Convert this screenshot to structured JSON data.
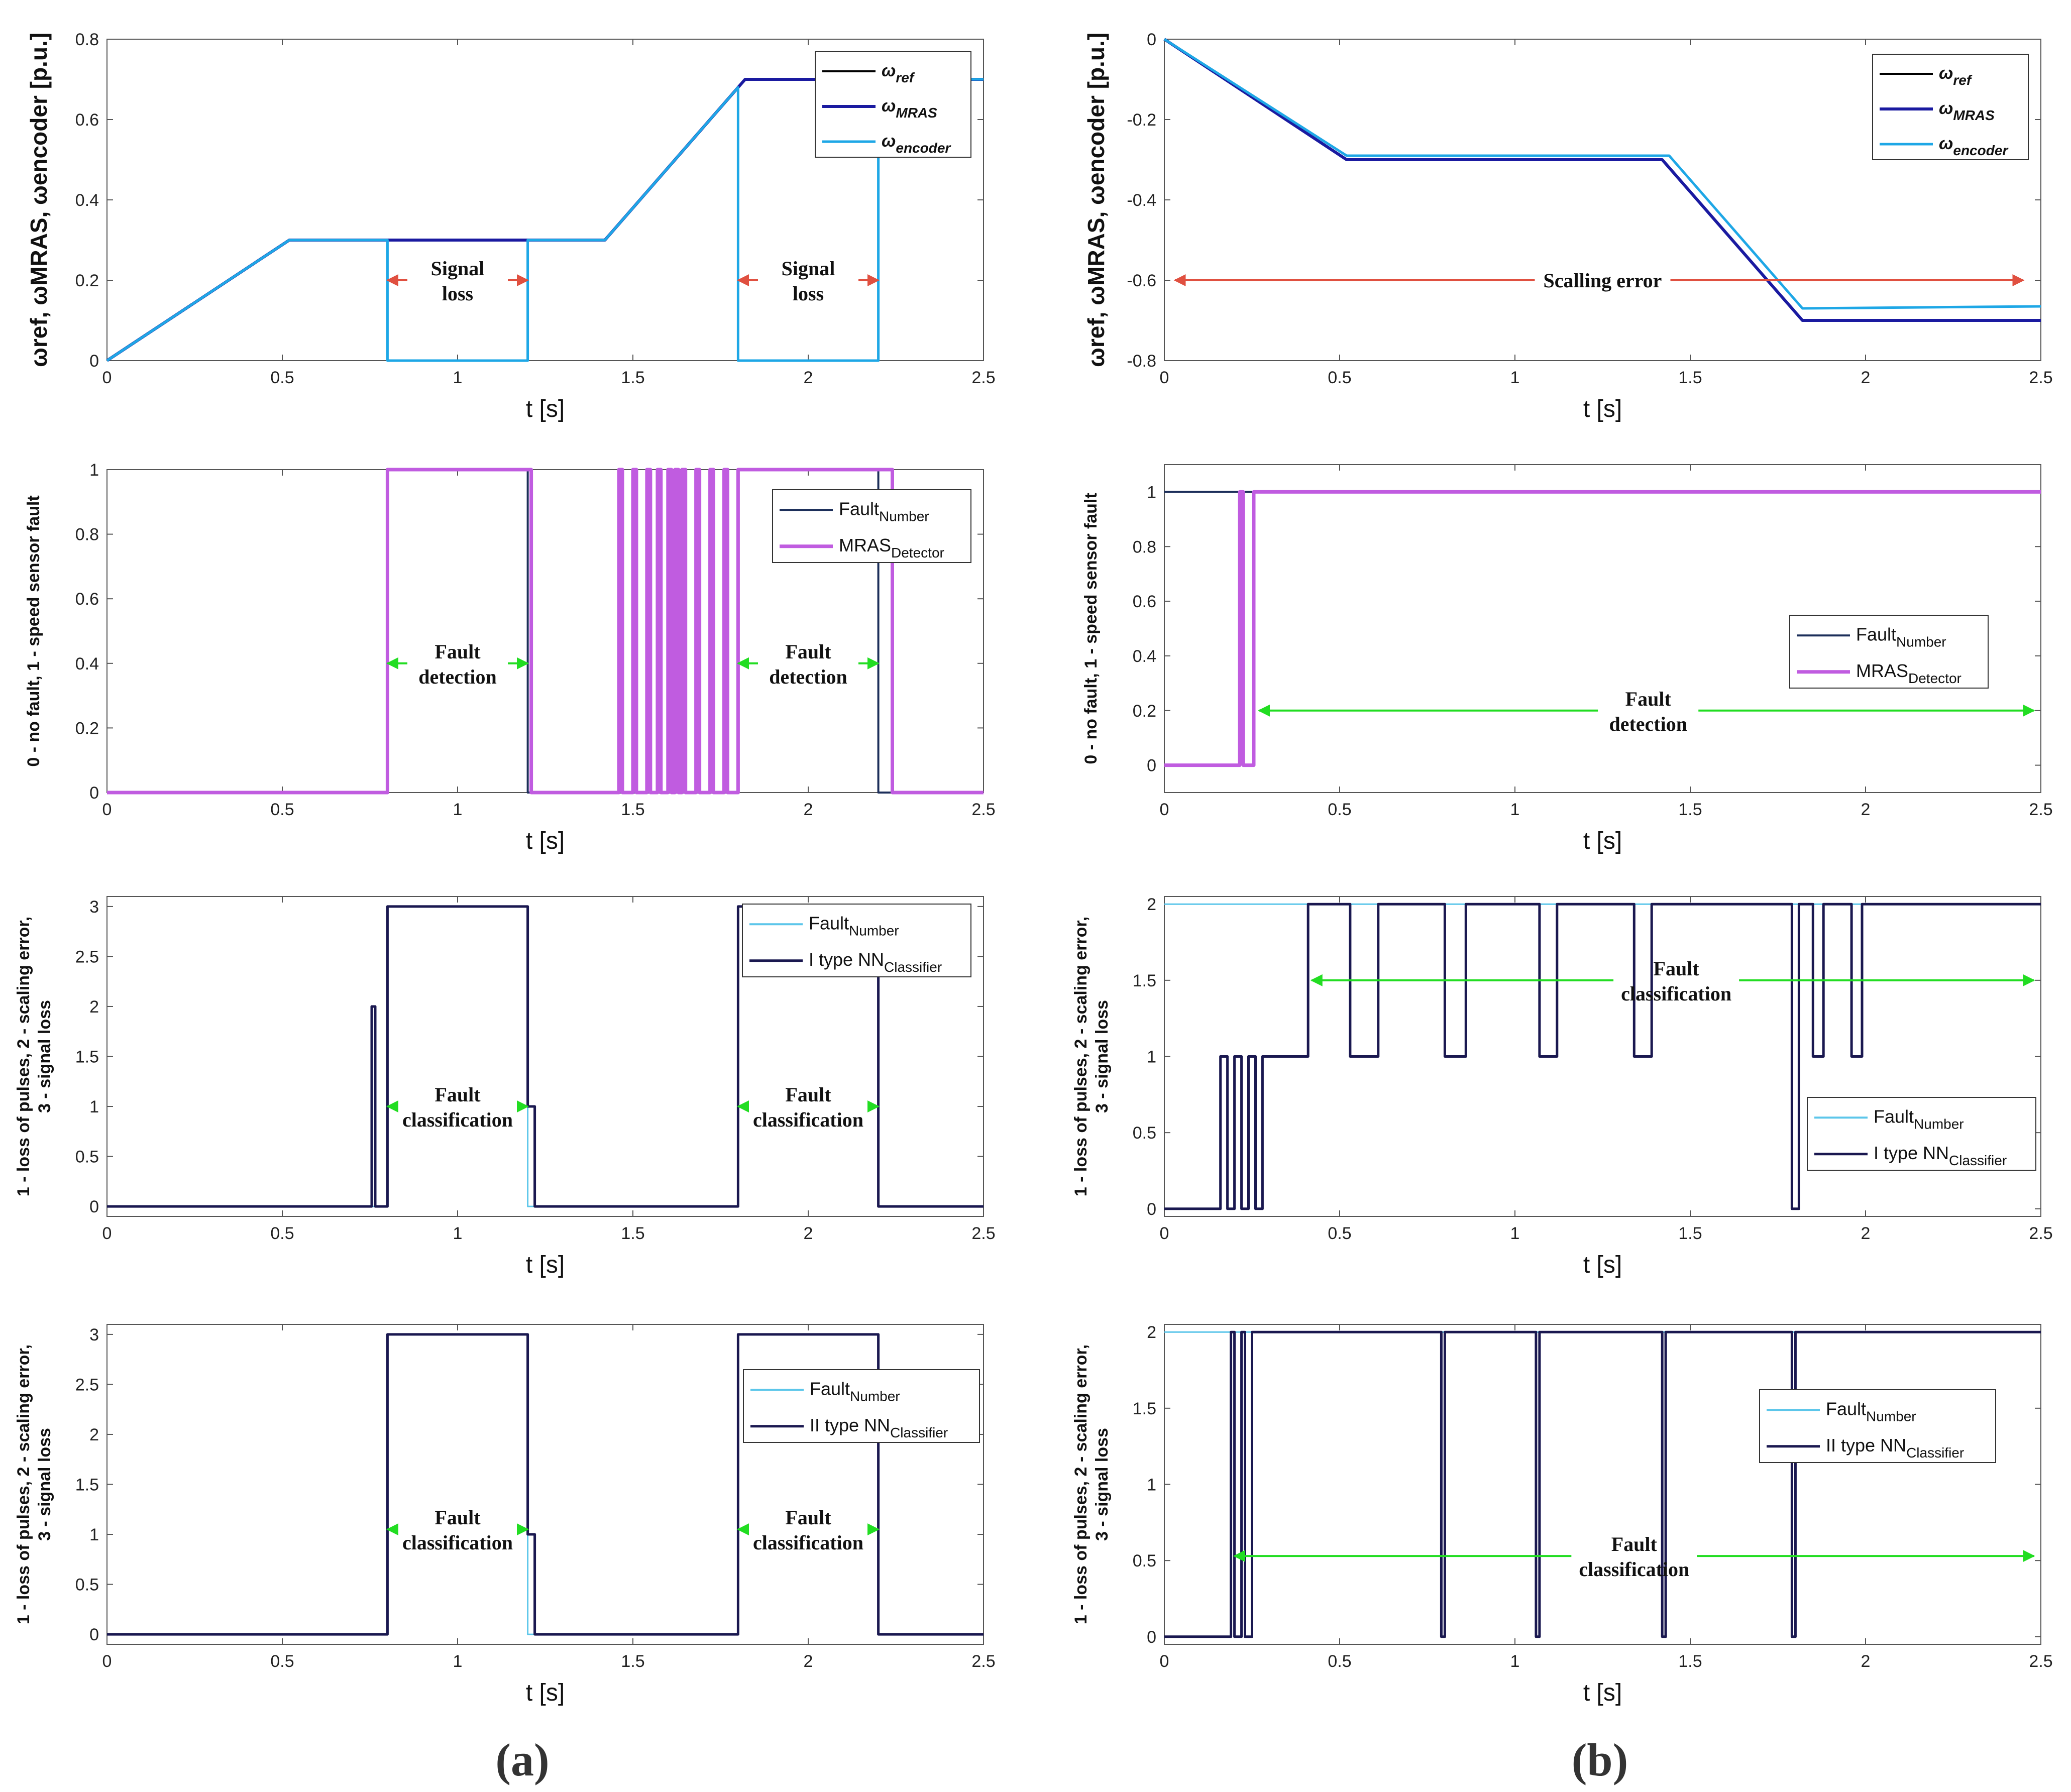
{
  "figure": {
    "panel_labels": [
      "(a)",
      "(b)"
    ]
  },
  "colors": {
    "ref": "#000000",
    "mras": "#1a1aa0",
    "encoder": "#1ea7e6",
    "detector": "#c05ce0",
    "fault_number_a": "#1c2f5a",
    "fault_number_c": "#5cc6ea",
    "classifier": "#1a1850",
    "red_arrow": "#e05040",
    "green_arrow": "#22dd22"
  },
  "chart_data": [
    {
      "id": "a1",
      "type": "line",
      "xlabel": "t [s]",
      "xlim": [
        0,
        2.5
      ],
      "xticks": [
        0,
        0.5,
        1,
        1.5,
        2,
        2.5
      ],
      "ylabel": "ωref, ωMRAS, ωencoder [p.u.]",
      "ylim": [
        0,
        0.8
      ],
      "yticks": [
        0,
        0.2,
        0.4,
        0.6,
        0.8
      ],
      "legend": [
        "ωref",
        "ωMRAS",
        "ωencoder"
      ],
      "legend_position": "top-right",
      "series": [
        {
          "name": "ωref",
          "color": "ref",
          "width": 4,
          "x": [
            0,
            0.52,
            1.42,
            1.82,
            2.5
          ],
          "y": [
            0,
            0.3,
            0.3,
            0.7,
            0.7
          ]
        },
        {
          "name": "ωMRAS",
          "color": "mras",
          "width": 6,
          "x": [
            0,
            0.52,
            1.42,
            1.82,
            2.5
          ],
          "y": [
            0,
            0.3,
            0.3,
            0.7,
            0.7
          ]
        },
        {
          "name": "ωencoder",
          "color": "encoder",
          "width": 5,
          "x": [
            0,
            0.52,
            0.8,
            0.8,
            1.2,
            1.2,
            1.42,
            1.8,
            1.8,
            2.2,
            2.2,
            2.5
          ],
          "y": [
            0,
            0.3,
            0.3,
            0,
            0,
            0.3,
            0.3,
            0.68,
            0,
            0,
            0.7,
            0.7
          ]
        }
      ],
      "annotations": [
        {
          "lines": [
            "Signal",
            "loss"
          ],
          "x1": 0.8,
          "x2": 1.2,
          "y": 0.2,
          "color": "red_arrow",
          "text_x": 1.0,
          "text_y": 0.2
        },
        {
          "lines": [
            "Signal",
            "loss"
          ],
          "x1": 1.8,
          "x2": 2.2,
          "y": 0.2,
          "color": "red_arrow",
          "text_x": 2.0,
          "text_y": 0.2
        }
      ]
    },
    {
      "id": "b1",
      "type": "line",
      "xlabel": "t [s]",
      "xlim": [
        0,
        2.5
      ],
      "xticks": [
        0,
        0.5,
        1,
        1.5,
        2,
        2.5
      ],
      "ylabel": "ωref, ωMRAS, ωencoder [p.u.]",
      "ylim": [
        -0.8,
        0
      ],
      "yticks": [
        -0.8,
        -0.6,
        -0.4,
        -0.2,
        0
      ],
      "legend": [
        "ωref",
        "ωMRAS",
        "ωencoder"
      ],
      "legend_position": "top-right",
      "series": [
        {
          "name": "ωref",
          "color": "ref",
          "width": 4,
          "x": [
            0,
            0.52,
            1.42,
            1.82,
            2.5
          ],
          "y": [
            0,
            -0.3,
            -0.3,
            -0.7,
            -0.7
          ]
        },
        {
          "name": "ωMRAS",
          "color": "mras",
          "width": 6,
          "x": [
            0,
            0.52,
            1.42,
            1.82,
            2.5
          ],
          "y": [
            0,
            -0.3,
            -0.3,
            -0.7,
            -0.7
          ]
        },
        {
          "name": "ωencoder",
          "color": "encoder",
          "width": 5,
          "x": [
            0,
            0.52,
            1.44,
            1.82,
            2.5
          ],
          "y": [
            0,
            -0.29,
            -0.29,
            -0.67,
            -0.665
          ]
        }
      ],
      "annotations": [
        {
          "lines": [
            "Scalling error"
          ],
          "x1": 0.03,
          "x2": 2.45,
          "y": -0.6,
          "color": "red_arrow",
          "text_x": 1.25,
          "text_y": -0.6
        }
      ]
    },
    {
      "id": "a2",
      "type": "line",
      "xlabel": "t [s]",
      "xlim": [
        0,
        2.5
      ],
      "xticks": [
        0,
        0.5,
        1,
        1.5,
        2,
        2.5
      ],
      "ylabel": "0 - no fault, 1 - speed sensor fault",
      "ylim": [
        0,
        1
      ],
      "yticks": [
        0,
        0.2,
        0.4,
        0.6,
        0.8,
        1
      ],
      "legend": [
        "FaultNumber",
        "MRASDetector"
      ],
      "legend_position": "top-right",
      "series": [
        {
          "name": "FaultNumber",
          "color": "fault_number_a",
          "width": 4,
          "x": [
            0,
            0.8,
            0.8,
            1.2,
            1.2,
            1.8,
            1.8,
            2.2,
            2.2,
            2.5
          ],
          "y": [
            0,
            0,
            1,
            1,
            0,
            0,
            1,
            1,
            0,
            0
          ]
        },
        {
          "name": "MRASDetector",
          "color": "detector",
          "width": 7,
          "x": [
            0,
            0.8,
            0.8,
            1.21,
            1.21,
            1.46,
            1.46,
            1.47,
            1.47,
            1.5,
            1.5,
            1.51,
            1.51,
            1.54,
            1.54,
            1.55,
            1.55,
            1.57,
            1.57,
            1.58,
            1.58,
            1.6,
            1.6,
            1.61,
            1.61,
            1.62,
            1.62,
            1.63,
            1.63,
            1.64,
            1.64,
            1.65,
            1.65,
            1.68,
            1.68,
            1.69,
            1.69,
            1.72,
            1.72,
            1.73,
            1.73,
            1.76,
            1.76,
            1.77,
            1.77,
            1.8,
            1.8,
            2.24,
            2.24,
            2.5
          ],
          "y": [
            0,
            0,
            1,
            1,
            0,
            0,
            1,
            1,
            0,
            0,
            1,
            1,
            0,
            0,
            1,
            1,
            0,
            0,
            1,
            1,
            0,
            0,
            1,
            1,
            0,
            0,
            1,
            1,
            0,
            0,
            1,
            1,
            0,
            0,
            1,
            1,
            0,
            0,
            1,
            1,
            0,
            0,
            1,
            1,
            0,
            0,
            1,
            1,
            0,
            0
          ]
        }
      ],
      "annotations": [
        {
          "lines": [
            "Fault",
            "detection"
          ],
          "x1": 0.8,
          "x2": 1.2,
          "y": 0.4,
          "color": "green_arrow",
          "text_x": 1.0,
          "text_y": 0.4
        },
        {
          "lines": [
            "Fault",
            "detection"
          ],
          "x1": 1.8,
          "x2": 2.2,
          "y": 0.4,
          "color": "green_arrow",
          "text_x": 2.0,
          "text_y": 0.4
        }
      ]
    },
    {
      "id": "b2",
      "type": "line",
      "xlabel": "t [s]",
      "xlim": [
        0,
        2.5
      ],
      "xticks": [
        0,
        0.5,
        1,
        1.5,
        2,
        2.5
      ],
      "ylabel": "0 - no fault, 1 - speed sensor fault",
      "ylim": [
        -0.1,
        1.1
      ],
      "yticks": [
        0,
        0.2,
        0.4,
        0.6,
        0.8,
        1
      ],
      "legend": [
        "FaultNumber",
        "MRASDetector"
      ],
      "legend_position": "right",
      "series": [
        {
          "name": "FaultNumber",
          "color": "fault_number_a",
          "width": 4,
          "x": [
            0,
            2.5
          ],
          "y": [
            1,
            1
          ]
        },
        {
          "name": "MRASDetector",
          "color": "detector",
          "width": 7,
          "x": [
            0,
            0.215,
            0.215,
            0.225,
            0.225,
            0.255,
            0.255,
            2.5
          ],
          "y": [
            0,
            0,
            1,
            1,
            0,
            0,
            1,
            1
          ]
        }
      ],
      "annotations": [
        {
          "lines": [
            "Fault",
            "detection"
          ],
          "x1": 0.27,
          "x2": 2.48,
          "y": 0.2,
          "color": "green_arrow",
          "text_x": 1.38,
          "text_y": 0.2
        }
      ]
    },
    {
      "id": "a3",
      "type": "line",
      "xlabel": "t [s]",
      "xlim": [
        0,
        2.5
      ],
      "xticks": [
        0,
        0.5,
        1,
        1.5,
        2,
        2.5
      ],
      "ylabel": "1 - loss of pulses, 2 - scaling error, 3 - signal loss",
      "ylim": [
        -0.1,
        3.1
      ],
      "yticks": [
        0,
        0.5,
        1,
        1.5,
        2,
        2.5,
        3
      ],
      "legend": [
        "FaultNumber",
        "I type NNClassifier"
      ],
      "legend_position": "top-right",
      "series": [
        {
          "name": "FaultNumber",
          "color": "fault_number_c",
          "width": 3,
          "x": [
            0,
            0.8,
            0.8,
            1.2,
            1.2,
            1.8,
            1.8,
            2.2,
            2.2,
            2.5
          ],
          "y": [
            0,
            0,
            3,
            3,
            0,
            0,
            3,
            3,
            0,
            0
          ]
        },
        {
          "name": "I type NNClassifier",
          "color": "classifier",
          "width": 5,
          "x": [
            0,
            0.755,
            0.755,
            0.765,
            0.765,
            0.8,
            0.8,
            1.2,
            1.2,
            1.22,
            1.22,
            1.8,
            1.8,
            2.2,
            2.2,
            2.5
          ],
          "y": [
            0,
            0,
            2,
            2,
            0,
            0,
            3,
            3,
            1,
            1,
            0,
            0,
            3,
            3,
            0,
            0
          ]
        }
      ],
      "annotations": [
        {
          "lines": [
            "Fault",
            "classification"
          ],
          "x1": 0.8,
          "x2": 1.2,
          "y": 1.0,
          "color": "green_arrow",
          "text_x": 1.0,
          "text_y": 1.0
        },
        {
          "lines": [
            "Fault",
            "classification"
          ],
          "x1": 1.8,
          "x2": 2.2,
          "y": 1.0,
          "color": "green_arrow",
          "text_x": 2.0,
          "text_y": 1.0
        }
      ]
    },
    {
      "id": "b3",
      "type": "line",
      "xlabel": "t [s]",
      "xlim": [
        0,
        2.5
      ],
      "xticks": [
        0,
        0.5,
        1,
        1.5,
        2,
        2.5
      ],
      "ylabel": "1 - loss of pulses, 2 - scaling error, 3 - signal loss",
      "ylim": [
        -0.05,
        2.05
      ],
      "yticks": [
        0,
        0.5,
        1,
        1.5,
        2
      ],
      "legend": [
        "FaultNumber",
        "I type NNClassifier"
      ],
      "legend_position": "right",
      "series": [
        {
          "name": "FaultNumber",
          "color": "fault_number_c",
          "width": 3,
          "x": [
            0,
            2.5
          ],
          "y": [
            2,
            2
          ]
        },
        {
          "name": "I type NNClassifier",
          "color": "classifier",
          "width": 5,
          "x": [
            0,
            0.16,
            0.16,
            0.18,
            0.18,
            0.2,
            0.2,
            0.22,
            0.22,
            0.24,
            0.24,
            0.26,
            0.26,
            0.28,
            0.28,
            0.41,
            0.41,
            0.53,
            0.53,
            0.61,
            0.61,
            0.8,
            0.8,
            0.86,
            0.86,
            1.07,
            1.07,
            1.12,
            1.12,
            1.34,
            1.34,
            1.39,
            1.39,
            1.79,
            1.79,
            1.81,
            1.81,
            1.85,
            1.85,
            1.88,
            1.88,
            1.96,
            1.96,
            1.99,
            1.99,
            2.5
          ],
          "y": [
            0,
            0,
            1,
            1,
            0,
            0,
            1,
            1,
            0,
            0,
            1,
            1,
            0,
            0,
            1,
            1,
            2,
            2,
            1,
            1,
            2,
            2,
            1,
            1,
            2,
            2,
            1,
            1,
            2,
            2,
            1,
            1,
            2,
            2,
            0,
            0,
            2,
            2,
            1,
            1,
            2,
            2,
            1,
            1,
            2,
            2
          ]
        }
      ],
      "annotations": [
        {
          "lines": [
            "Fault",
            "classification"
          ],
          "x1": 0.42,
          "x2": 2.48,
          "y": 1.5,
          "color": "green_arrow",
          "text_x": 1.46,
          "text_y": 1.5
        }
      ]
    },
    {
      "id": "a4",
      "type": "line",
      "xlabel": "t [s]",
      "xlim": [
        0,
        2.5
      ],
      "xticks": [
        0,
        0.5,
        1,
        1.5,
        2,
        2.5
      ],
      "ylabel": "1 - loss of pulses, 2 - scaling error, 3 - signal loss",
      "ylim": [
        -0.1,
        3.1
      ],
      "yticks": [
        0,
        0.5,
        1,
        1.5,
        2,
        2.5,
        3
      ],
      "legend": [
        "FaultNumber",
        "II type NNClassifier"
      ],
      "legend_position": "right",
      "series": [
        {
          "name": "FaultNumber",
          "color": "fault_number_c",
          "width": 3,
          "x": [
            0,
            0.8,
            0.8,
            1.2,
            1.2,
            1.8,
            1.8,
            2.2,
            2.2,
            2.5
          ],
          "y": [
            0,
            0,
            3,
            3,
            0,
            0,
            3,
            3,
            0,
            0
          ]
        },
        {
          "name": "II type NNClassifier",
          "color": "classifier",
          "width": 5,
          "x": [
            0,
            0.8,
            0.8,
            1.2,
            1.2,
            1.22,
            1.22,
            1.8,
            1.8,
            2.2,
            2.2,
            2.5
          ],
          "y": [
            0,
            0,
            3,
            3,
            1,
            1,
            0,
            0,
            3,
            3,
            0,
            0
          ]
        }
      ],
      "annotations": [
        {
          "lines": [
            "Fault",
            "classification"
          ],
          "x1": 0.8,
          "x2": 1.2,
          "y": 1.05,
          "color": "green_arrow",
          "text_x": 1.0,
          "text_y": 1.05
        },
        {
          "lines": [
            "Fault",
            "classification"
          ],
          "x1": 1.8,
          "x2": 2.2,
          "y": 1.05,
          "color": "green_arrow",
          "text_x": 2.0,
          "text_y": 1.05
        }
      ]
    },
    {
      "id": "b4",
      "type": "line",
      "xlabel": "t [s]",
      "xlim": [
        0,
        2.5
      ],
      "xticks": [
        0,
        0.5,
        1,
        1.5,
        2,
        2.5
      ],
      "ylabel": "1 - loss of pulses, 2 - scaling error, 3 - signal loss",
      "ylim": [
        -0.05,
        2.05
      ],
      "yticks": [
        0,
        0.5,
        1,
        1.5,
        2
      ],
      "legend": [
        "FaultNumber",
        "II type NNClassifier"
      ],
      "legend_position": "right",
      "series": [
        {
          "name": "FaultNumber",
          "color": "fault_number_c",
          "width": 3,
          "x": [
            0,
            2.5
          ],
          "y": [
            2,
            2
          ]
        },
        {
          "name": "II type NNClassifier",
          "color": "classifier",
          "width": 5,
          "x": [
            0,
            0.19,
            0.19,
            0.2,
            0.2,
            0.22,
            0.22,
            0.23,
            0.23,
            0.25,
            0.25,
            0.26,
            0.26,
            0.79,
            0.79,
            0.8,
            0.8,
            1.06,
            1.06,
            1.07,
            1.07,
            1.42,
            1.42,
            1.43,
            1.43,
            1.79,
            1.79,
            1.8,
            1.8,
            2.5
          ],
          "y": [
            0,
            0,
            2,
            2,
            0,
            0,
            2,
            2,
            0,
            0,
            2,
            2,
            2,
            2,
            0,
            0,
            2,
            2,
            0,
            0,
            2,
            2,
            0,
            0,
            2,
            2,
            0,
            0,
            2,
            2
          ]
        }
      ],
      "annotations": [
        {
          "lines": [
            "Fault",
            "classification"
          ],
          "x1": 0.2,
          "x2": 2.48,
          "y": 0.53,
          "color": "green_arrow",
          "text_x": 1.34,
          "text_y": 0.53
        }
      ]
    }
  ]
}
